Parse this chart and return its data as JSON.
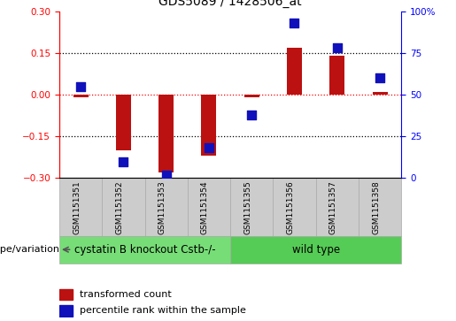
{
  "title": "GDS5089 / 1428506_at",
  "samples": [
    "GSM1151351",
    "GSM1151352",
    "GSM1151353",
    "GSM1151354",
    "GSM1151355",
    "GSM1151356",
    "GSM1151357",
    "GSM1151358"
  ],
  "red_bars": [
    -0.01,
    -0.2,
    -0.28,
    -0.22,
    -0.01,
    0.17,
    0.14,
    0.01
  ],
  "blue_dots": [
    55,
    10,
    2,
    18,
    38,
    93,
    78,
    60
  ],
  "ylim_left": [
    -0.3,
    0.3
  ],
  "ylim_right": [
    0,
    100
  ],
  "yticks_left": [
    -0.3,
    -0.15,
    0,
    0.15,
    0.3
  ],
  "yticks_right": [
    0,
    25,
    50,
    75,
    100
  ],
  "ytick_labels_right": [
    "0",
    "25",
    "50",
    "75",
    "100%"
  ],
  "groups": [
    {
      "label": "cystatin B knockout Cstb-/-",
      "count": 4,
      "color": "#77dd77"
    },
    {
      "label": "wild type",
      "count": 4,
      "color": "#55cc55"
    }
  ],
  "bar_color": "#bb1111",
  "dot_color": "#1111bb",
  "bar_width": 0.35,
  "dot_size": 45,
  "genotype_label": "genotype/variation",
  "legend_red": "transformed count",
  "legend_blue": "percentile rank within the sample",
  "title_fontsize": 10,
  "tick_fontsize": 7.5,
  "group_label_fontsize": 8.5,
  "sample_fontsize": 6.5
}
